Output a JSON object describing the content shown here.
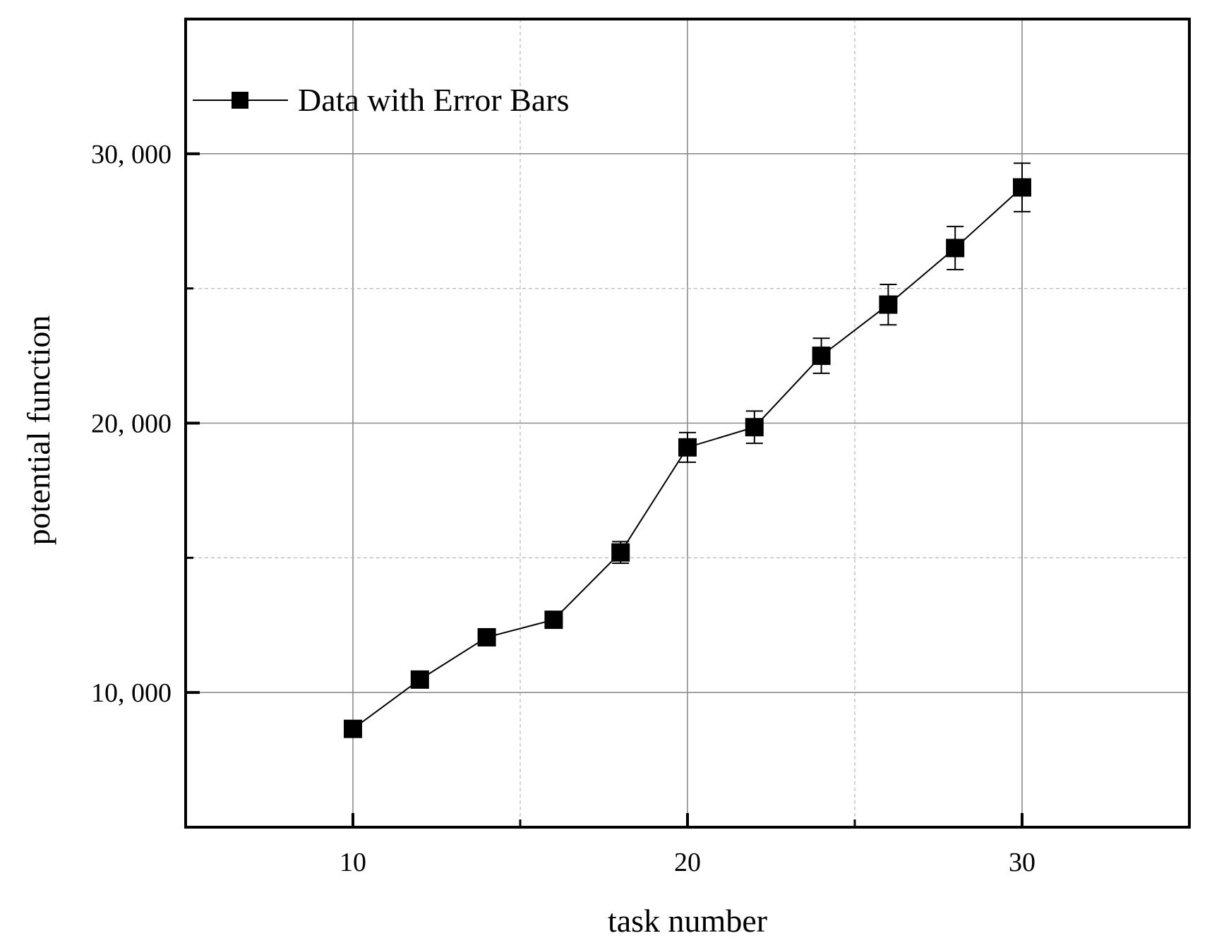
{
  "chart_data": {
    "type": "line",
    "xlabel": "task number",
    "ylabel": "potential function",
    "xlim": [
      5,
      35
    ],
    "ylim": [
      5000,
      35000
    ],
    "x_ticks": [
      10,
      20,
      30
    ],
    "x_tick_labels": [
      "10",
      "20",
      "30"
    ],
    "x_minor_ticks": [
      15,
      25
    ],
    "y_ticks": [
      10000,
      20000,
      30000
    ],
    "y_tick_labels": [
      "10, 000",
      "20, 000",
      "30, 000"
    ],
    "y_minor_ticks": [
      15000,
      25000
    ],
    "grid": true,
    "legend": {
      "position": "top-left"
    },
    "series": [
      {
        "name": "Data with Error Bars",
        "marker": "square",
        "color": "#000000",
        "x": [
          10,
          12,
          14,
          16,
          18,
          20,
          22,
          24,
          26,
          28,
          30
        ],
        "y": [
          8650,
          10480,
          12050,
          12700,
          15200,
          19100,
          19850,
          22500,
          24400,
          26500,
          28750
        ],
        "error": [
          150,
          200,
          250,
          300,
          400,
          550,
          600,
          650,
          750,
          800,
          900
        ]
      }
    ]
  }
}
